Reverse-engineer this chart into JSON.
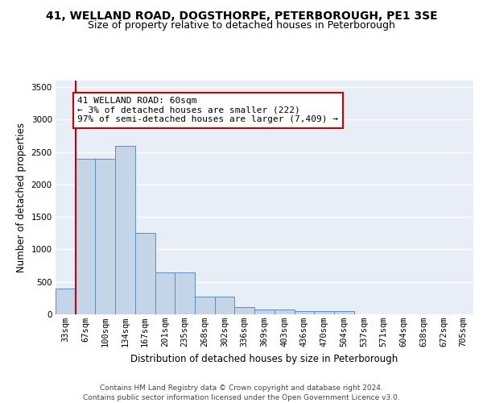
{
  "title1": "41, WELLAND ROAD, DOGSTHORPE, PETERBOROUGH, PE1 3SE",
  "title2": "Size of property relative to detached houses in Peterborough",
  "xlabel": "Distribution of detached houses by size in Peterborough",
  "ylabel": "Number of detached properties",
  "categories": [
    "33sqm",
    "67sqm",
    "100sqm",
    "134sqm",
    "167sqm",
    "201sqm",
    "235sqm",
    "268sqm",
    "302sqm",
    "336sqm",
    "369sqm",
    "403sqm",
    "436sqm",
    "470sqm",
    "504sqm",
    "537sqm",
    "571sqm",
    "604sqm",
    "638sqm",
    "672sqm",
    "705sqm"
  ],
  "values": [
    400,
    2400,
    2400,
    2600,
    1250,
    650,
    650,
    270,
    270,
    110,
    70,
    70,
    55,
    55,
    45,
    0,
    0,
    0,
    0,
    0,
    0
  ],
  "bar_color": "#c5d5e8",
  "bar_edge_color": "#5b8ec4",
  "bg_color": "#e8eef8",
  "annotation_box_text": "41 WELLAND ROAD: 60sqm\n← 3% of detached houses are smaller (222)\n97% of semi-detached houses are larger (7,409) →",
  "annotation_box_color": "#ffffff",
  "annotation_box_edge_color": "#cc0000",
  "vline_color": "#cc0000",
  "ylim": [
    0,
    3600
  ],
  "yticks": [
    0,
    500,
    1000,
    1500,
    2000,
    2500,
    3000,
    3500
  ],
  "footer": "Contains HM Land Registry data © Crown copyright and database right 2024.\nContains public sector information licensed under the Open Government Licence v3.0.",
  "title1_fontsize": 10,
  "title2_fontsize": 9,
  "xlabel_fontsize": 8.5,
  "ylabel_fontsize": 8.5,
  "tick_fontsize": 7.5,
  "annotation_fontsize": 8,
  "footer_fontsize": 6.5
}
